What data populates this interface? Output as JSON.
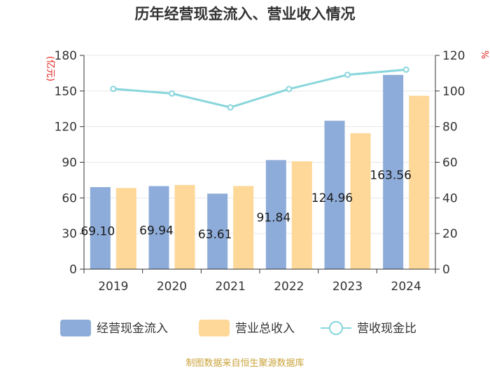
{
  "chart_data": {
    "type": "bar",
    "title": "历年经营现金流入、营业收入情况",
    "categories": [
      "2019",
      "2020",
      "2021",
      "2022",
      "2023",
      "2024"
    ],
    "series": [
      {
        "name": "经营现金流入",
        "axis": "left",
        "color": "#8eacd9",
        "values": [
          69.1,
          69.94,
          63.61,
          91.84,
          124.96,
          163.56
        ]
      },
      {
        "name": "营业总收入",
        "axis": "left",
        "color": "#fdd898",
        "values": [
          68.3,
          70.9,
          70.0,
          90.8,
          114.5,
          146.0
        ]
      },
      {
        "name": "营收现金比",
        "axis": "right",
        "type": "line",
        "color": "#88d6dc",
        "values": [
          101.2,
          98.6,
          90.8,
          101.1,
          109.1,
          112.0
        ]
      }
    ],
    "data_labels": [
      "69.10",
      "69.94",
      "63.61",
      "91.84",
      "124.96",
      "163.56"
    ],
    "ylim_left": [
      0,
      180
    ],
    "yticks_left": [
      0,
      30,
      60,
      90,
      120,
      150,
      180
    ],
    "ylabel_left": "(亿元)",
    "ylim_right": [
      0,
      120
    ],
    "yticks_right": [
      0,
      20,
      40,
      60,
      80,
      100,
      120
    ],
    "ylabel_right": "%",
    "legend_position": "bottom",
    "source": "制图数据来自恒生聚源数据库",
    "colors": {
      "unit_label": "#e0201c",
      "source": "#c9a23a",
      "axis": "#333333"
    }
  }
}
